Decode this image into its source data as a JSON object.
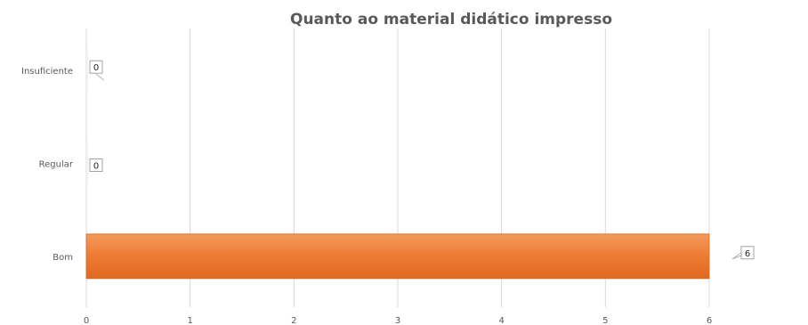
{
  "chart_data": {
    "type": "bar",
    "orientation": "horizontal",
    "title": "Quanto ao material didático impresso",
    "categories": [
      "Insuficiente",
      "Regular",
      "Bom"
    ],
    "values": [
      0,
      0,
      6
    ],
    "data_labels": [
      "0",
      "0",
      "6"
    ],
    "xlim": [
      0,
      6
    ],
    "x_ticks": [
      "0",
      "1",
      "2",
      "3",
      "4",
      "5",
      "6"
    ],
    "grid": "vertical",
    "legend": "none",
    "bar_color": "#EE7A32"
  }
}
